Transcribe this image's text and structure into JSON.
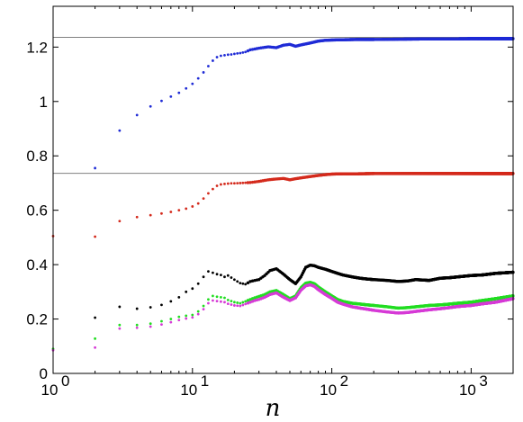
{
  "chart_data": {
    "type": "scatter",
    "xscale": "log",
    "xlim": [
      1,
      2000
    ],
    "ylim": [
      0,
      1.35
    ],
    "xlabel": "n",
    "ylabel": "",
    "title": "",
    "grid": false,
    "x_ticks": [
      {
        "value": 1,
        "base": "10",
        "exp": "0"
      },
      {
        "value": 10,
        "base": "10",
        "exp": "1"
      },
      {
        "value": 100,
        "base": "10",
        "exp": "2"
      },
      {
        "value": 1000,
        "base": "10",
        "exp": "3"
      }
    ],
    "y_ticks": [
      {
        "value": 0,
        "label": "0"
      },
      {
        "value": 0.2,
        "label": "0.2"
      },
      {
        "value": 0.4,
        "label": "0.4"
      },
      {
        "value": 0.6,
        "label": "0.6"
      },
      {
        "value": 0.8,
        "label": "0.8"
      },
      {
        "value": 1.0,
        "label": "1"
      },
      {
        "value": 1.2,
        "label": "1.2"
      }
    ],
    "reference_lines": [
      {
        "y": 1.236,
        "color": "#808080"
      },
      {
        "y": 0.736,
        "color": "#808080"
      }
    ],
    "series": [
      {
        "color": "#1f2bd6",
        "x": [
          2,
          3,
          4,
          5,
          6,
          7,
          8,
          9,
          10,
          11,
          12,
          13,
          14,
          15,
          16,
          17,
          18,
          19,
          20,
          22,
          24,
          26,
          28,
          30,
          35,
          40,
          45,
          50,
          55,
          60,
          70,
          80,
          90,
          100,
          120,
          150,
          200,
          300,
          500,
          700,
          1000,
          1500,
          2000
        ],
        "y": [
          0.755,
          0.893,
          0.95,
          0.982,
          1.002,
          1.018,
          1.032,
          1.048,
          1.065,
          1.085,
          1.107,
          1.13,
          1.15,
          1.163,
          1.168,
          1.17,
          1.172,
          1.173,
          1.175,
          1.178,
          1.182,
          1.19,
          1.193,
          1.196,
          1.201,
          1.198,
          1.207,
          1.21,
          1.203,
          1.208,
          1.215,
          1.222,
          1.225,
          1.226,
          1.227,
          1.228,
          1.228,
          1.229,
          1.23,
          1.23,
          1.231,
          1.231,
          1.231
        ]
      },
      {
        "color": "#d42a1c",
        "x": [
          1,
          2,
          3,
          4,
          5,
          6,
          7,
          8,
          9,
          10,
          11,
          12,
          13,
          14,
          15,
          16,
          17,
          18,
          19,
          20,
          22,
          24,
          26,
          28,
          30,
          35,
          40,
          45,
          50,
          55,
          60,
          70,
          80,
          90,
          100,
          120,
          150,
          200,
          300,
          500,
          700,
          1000,
          1500,
          2000
        ],
        "y": [
          0.505,
          0.503,
          0.56,
          0.575,
          0.582,
          0.588,
          0.594,
          0.6,
          0.606,
          0.614,
          0.625,
          0.643,
          0.662,
          0.678,
          0.69,
          0.695,
          0.697,
          0.698,
          0.699,
          0.699,
          0.7,
          0.701,
          0.702,
          0.704,
          0.706,
          0.712,
          0.715,
          0.717,
          0.712,
          0.716,
          0.719,
          0.724,
          0.728,
          0.731,
          0.733,
          0.734,
          0.734,
          0.735,
          0.735,
          0.735,
          0.735,
          0.735,
          0.735,
          0.735
        ]
      },
      {
        "color": "#000000",
        "x": [
          2,
          3,
          4,
          5,
          6,
          7,
          8,
          9,
          10,
          11,
          12,
          13,
          14,
          15,
          16,
          17,
          18,
          20,
          22,
          24,
          26,
          28,
          30,
          33,
          36,
          40,
          45,
          50,
          55,
          60,
          65,
          70,
          75,
          80,
          90,
          100,
          110,
          120,
          140,
          160,
          180,
          200,
          250,
          300,
          350,
          400,
          500,
          600,
          700,
          800,
          1000,
          1200,
          1500,
          2000
        ],
        "y": [
          0.205,
          0.245,
          0.238,
          0.243,
          0.252,
          0.265,
          0.28,
          0.3,
          0.312,
          0.33,
          0.355,
          0.375,
          0.37,
          0.365,
          0.362,
          0.355,
          0.36,
          0.345,
          0.332,
          0.328,
          0.338,
          0.342,
          0.345,
          0.36,
          0.378,
          0.385,
          0.365,
          0.345,
          0.33,
          0.355,
          0.39,
          0.398,
          0.396,
          0.39,
          0.383,
          0.375,
          0.368,
          0.362,
          0.355,
          0.35,
          0.347,
          0.345,
          0.342,
          0.338,
          0.34,
          0.345,
          0.342,
          0.35,
          0.352,
          0.355,
          0.36,
          0.362,
          0.368,
          0.372
        ]
      },
      {
        "color": "#22dd22",
        "x": [
          1,
          2,
          3,
          4,
          5,
          6,
          7,
          8,
          9,
          10,
          11,
          12,
          13,
          14,
          15,
          16,
          17,
          18,
          20,
          22,
          24,
          26,
          28,
          30,
          33,
          36,
          40,
          45,
          50,
          55,
          60,
          65,
          70,
          75,
          80,
          90,
          100,
          110,
          120,
          140,
          160,
          180,
          200,
          250,
          300,
          350,
          400,
          500,
          600,
          700,
          800,
          1000,
          1200,
          1500,
          2000
        ],
        "y": [
          0.09,
          0.128,
          0.178,
          0.178,
          0.183,
          0.192,
          0.2,
          0.208,
          0.212,
          0.215,
          0.228,
          0.248,
          0.272,
          0.285,
          0.282,
          0.28,
          0.278,
          0.27,
          0.262,
          0.258,
          0.265,
          0.272,
          0.278,
          0.283,
          0.29,
          0.3,
          0.305,
          0.29,
          0.275,
          0.285,
          0.315,
          0.332,
          0.335,
          0.33,
          0.318,
          0.3,
          0.285,
          0.272,
          0.265,
          0.258,
          0.255,
          0.252,
          0.25,
          0.245,
          0.24,
          0.242,
          0.245,
          0.25,
          0.252,
          0.255,
          0.258,
          0.262,
          0.268,
          0.275,
          0.285
        ]
      },
      {
        "color": "#d63ad6",
        "x": [
          1,
          2,
          3,
          4,
          5,
          6,
          7,
          8,
          9,
          10,
          11,
          12,
          13,
          14,
          15,
          16,
          17,
          18,
          20,
          22,
          24,
          26,
          28,
          30,
          33,
          36,
          40,
          45,
          50,
          55,
          60,
          65,
          70,
          75,
          80,
          90,
          100,
          110,
          120,
          140,
          160,
          180,
          200,
          250,
          300,
          350,
          400,
          500,
          600,
          700,
          800,
          1000,
          1200,
          1500,
          2000
        ],
        "y": [
          0.085,
          0.095,
          0.165,
          0.168,
          0.172,
          0.18,
          0.188,
          0.196,
          0.202,
          0.206,
          0.218,
          0.236,
          0.258,
          0.268,
          0.266,
          0.264,
          0.262,
          0.256,
          0.25,
          0.248,
          0.255,
          0.262,
          0.268,
          0.272,
          0.28,
          0.29,
          0.296,
          0.28,
          0.268,
          0.278,
          0.306,
          0.322,
          0.326,
          0.32,
          0.308,
          0.29,
          0.276,
          0.262,
          0.255,
          0.245,
          0.24,
          0.236,
          0.232,
          0.226,
          0.222,
          0.224,
          0.228,
          0.234,
          0.238,
          0.242,
          0.246,
          0.25,
          0.256,
          0.262,
          0.275
        ]
      }
    ]
  }
}
